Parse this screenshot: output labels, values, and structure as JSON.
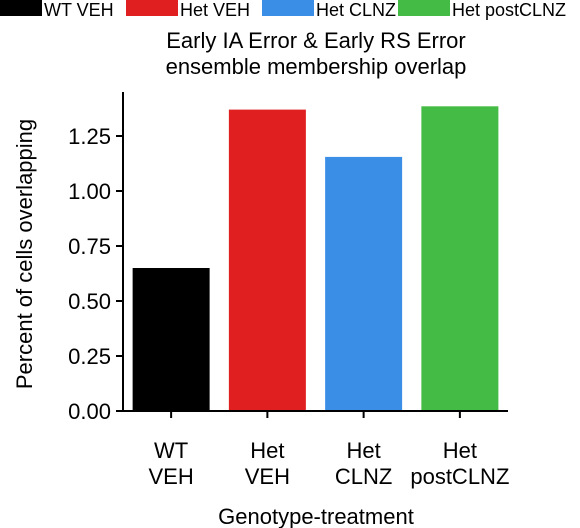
{
  "chart_data": {
    "type": "bar",
    "title": "Early IA Error & Early RS Error ensemble membership overlap",
    "title_lines": [
      "Early IA Error & Early RS Error",
      "ensemble membership overlap"
    ],
    "xlabel": "Genotype-treatment",
    "ylabel": "Percent of cells overlapping",
    "categories": [
      "WT VEH",
      "Het VEH",
      "Het CLNZ",
      "Het postCLNZ"
    ],
    "category_lines": [
      [
        "WT",
        "VEH"
      ],
      [
        "Het",
        "VEH"
      ],
      [
        "Het",
        "CLNZ"
      ],
      [
        "Het",
        "postCLNZ"
      ]
    ],
    "values": [
      0.65,
      1.37,
      1.155,
      1.385
    ],
    "colors": [
      "#000000",
      "#e02020",
      "#3a8ee6",
      "#44bb44"
    ],
    "ylim": [
      0,
      1.45
    ],
    "yticks": [
      0.0,
      0.25,
      0.5,
      0.75,
      1.0,
      1.25
    ],
    "ytick_labels": [
      "0.00",
      "0.25",
      "0.50",
      "0.75",
      "1.00",
      "1.25"
    ],
    "legend": {
      "placement": "top",
      "entries": [
        "WT VEH",
        "Het VEH",
        "Het CLNZ",
        "Het postCLNZ"
      ]
    },
    "grid": false
  }
}
